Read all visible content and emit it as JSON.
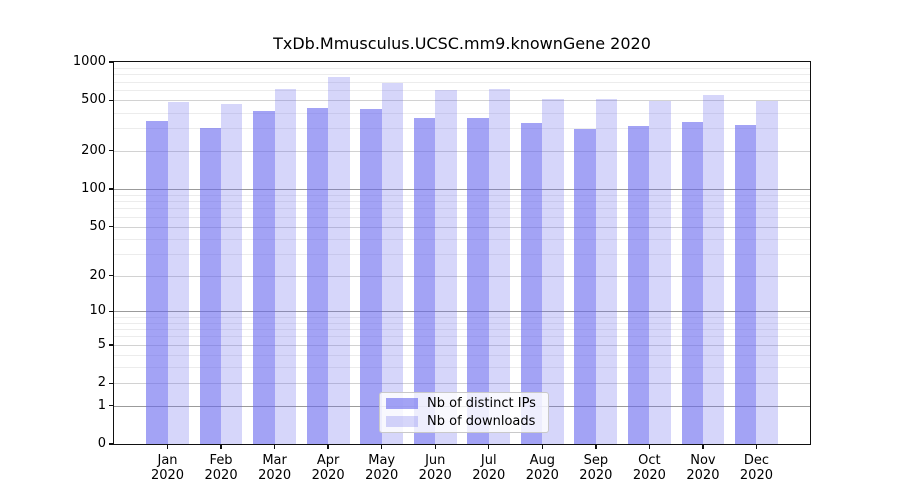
{
  "title": "TxDb.Mmusculus.UCSC.mm9.knownGene 2020",
  "chart_data": {
    "type": "bar",
    "title": "TxDb.Mmusculus.UCSC.mm9.knownGene 2020",
    "categories": [
      "Jan",
      "Feb",
      "Mar",
      "Apr",
      "May",
      "Jun",
      "Jul",
      "Aug",
      "Sep",
      "Oct",
      "Nov",
      "Dec"
    ],
    "category_year": "2020",
    "series": [
      {
        "name": "Nb of distinct IPs",
        "color": "rgba(102,102,238,0.60)",
        "values": [
          345,
          300,
          410,
          435,
          425,
          360,
          365,
          330,
          295,
          315,
          340,
          320
        ]
      },
      {
        "name": "Nb of downloads",
        "color": "rgba(102,102,238,0.27)",
        "values": [
          485,
          465,
          615,
          760,
          680,
          605,
          610,
          515,
          515,
          490,
          550,
          490
        ]
      }
    ],
    "xlabel": "",
    "ylabel": "",
    "yscale": "log1p",
    "ylim": [
      0,
      1000
    ],
    "yticks": [
      1000,
      500,
      200,
      100,
      50,
      20,
      10,
      5,
      2,
      1,
      0
    ],
    "minor_gridlines": [
      900,
      800,
      700,
      600,
      400,
      300,
      90,
      80,
      70,
      60,
      40,
      30,
      9,
      8,
      7,
      6,
      4,
      3
    ],
    "grid": "on",
    "legend_position": "lower center"
  },
  "legend": {
    "items": [
      {
        "label": "Nb of distinct IPs"
      },
      {
        "label": "Nb of downloads"
      }
    ]
  },
  "colors": {
    "bar_distinct_ips": "rgba(102,102,238,0.60)",
    "bar_downloads": "rgba(102,102,238,0.27)",
    "grid_power10": "#9b9b9b",
    "grid_labeled": "#d2d2d2",
    "grid_minor": "#ececec",
    "spine": "#111111",
    "background": "#ffffff"
  }
}
